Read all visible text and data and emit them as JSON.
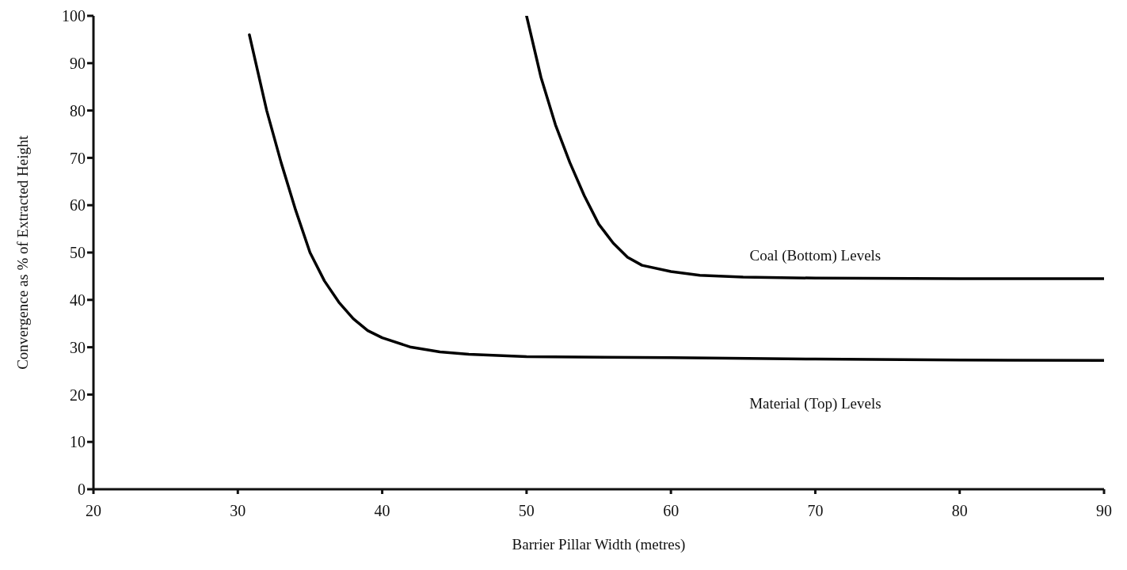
{
  "chart_data": {
    "type": "line",
    "xlabel": "Barrier Pillar Width (metres)",
    "ylabel": "Convergence as % of Extracted Height",
    "xlim": [
      20,
      90
    ],
    "xticks": [
      20,
      30,
      40,
      50,
      60,
      70,
      80,
      90
    ],
    "ylim": [
      0,
      100
    ],
    "yticks": [
      0,
      10,
      20,
      30,
      40,
      50,
      60,
      70,
      80,
      90,
      100
    ],
    "grid": false,
    "legend": false,
    "marker": "none",
    "line_style": "solid",
    "series": [
      {
        "name": "Coal (Bottom) Levels",
        "color": "#000000",
        "x": [
          50,
          51,
          52,
          53,
          54,
          55,
          56,
          57,
          58,
          60,
          62,
          65,
          70,
          80,
          90
        ],
        "values": [
          100,
          87,
          77,
          69,
          62,
          56,
          52,
          49,
          47.3,
          46,
          45.2,
          44.8,
          44.6,
          44.5,
          44.5
        ]
      },
      {
        "name": "Material (Top) Levels",
        "color": "#000000",
        "x": [
          30.8,
          32,
          33,
          34,
          35,
          36,
          37,
          38,
          39,
          40,
          42,
          44,
          46,
          50,
          60,
          70,
          80,
          90
        ],
        "values": [
          96,
          80,
          69,
          59,
          50,
          44,
          39.5,
          36,
          33.5,
          32,
          30,
          29,
          28.5,
          28,
          27.8,
          27.5,
          27.3,
          27.2
        ]
      }
    ]
  }
}
